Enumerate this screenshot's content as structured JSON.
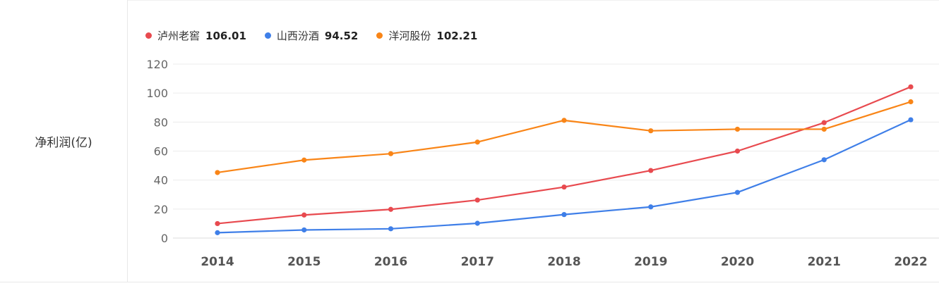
{
  "row_label": "净利润(亿)",
  "legend": [
    {
      "name": "泸州老窖",
      "value": "106.01",
      "color": "#e84a4f"
    },
    {
      "name": "山西汾酒",
      "value": "94.52",
      "color": "#3f7fe8"
    },
    {
      "name": "洋河股份",
      "value": "102.21",
      "color": "#f98517"
    }
  ],
  "chart_data": {
    "type": "line",
    "x": [
      "2014",
      "2015",
      "2016",
      "2017",
      "2018",
      "2019",
      "2020",
      "2021",
      "2022"
    ],
    "y_ticks": [
      "0",
      "20",
      "40",
      "60",
      "80",
      "100",
      "120"
    ],
    "ylim": [
      0,
      120
    ],
    "grid": true,
    "legend_position": "top-left",
    "series": [
      {
        "name": "泸州老窖",
        "color": "#e84a4f",
        "values": [
          10.0,
          15.9,
          19.8,
          26.2,
          35.2,
          46.6,
          60.0,
          79.6,
          104.3
        ]
      },
      {
        "name": "山西汾酒",
        "color": "#3f7fe8",
        "values": [
          3.7,
          5.6,
          6.4,
          10.2,
          16.2,
          21.5,
          31.5,
          54.0,
          81.6
        ]
      },
      {
        "name": "洋河股份",
        "color": "#f98517",
        "values": [
          45.2,
          53.8,
          58.2,
          66.2,
          81.2,
          74.0,
          75.1,
          75.1,
          94.0
        ]
      }
    ]
  }
}
